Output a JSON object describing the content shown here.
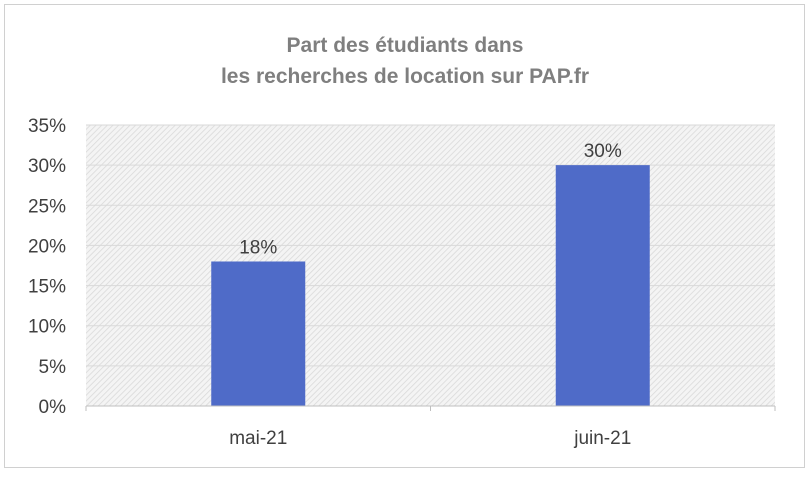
{
  "chart_data": {
    "type": "bar",
    "title_lines": [
      "Part des étudiants dans",
      "les recherches de location sur PAP.fr"
    ],
    "categories": [
      "mai-21",
      "juin-21"
    ],
    "values": [
      18,
      30
    ],
    "data_labels": [
      "18%",
      "30%"
    ],
    "y_ticks": [
      "0%",
      "5%",
      "10%",
      "15%",
      "20%",
      "25%",
      "30%",
      "35%"
    ],
    "ylim": [
      0,
      35
    ],
    "xlabel": "",
    "ylabel": "",
    "grid": true,
    "legend": "none",
    "colors": {
      "bar": "#4f6bc8",
      "plot_background": "hatched-grey",
      "title": "#7f7f7f"
    }
  }
}
